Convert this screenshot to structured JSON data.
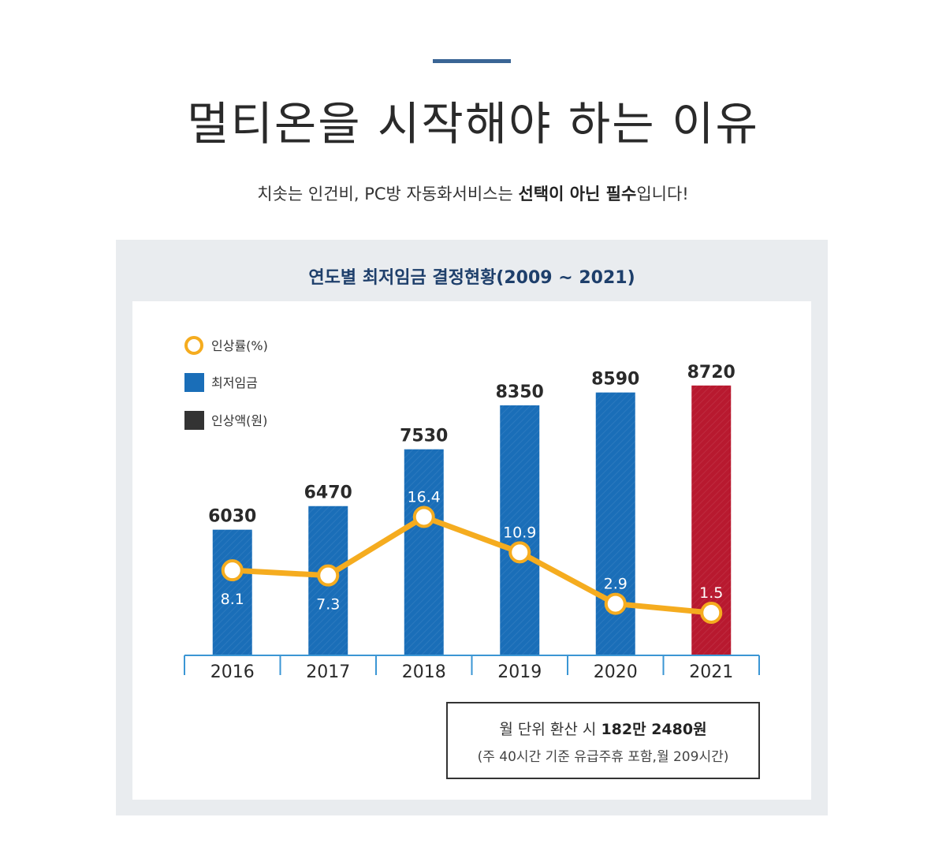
{
  "header": {
    "title": "멀티온을 시작해야 하는 이유",
    "subtitle_pre": "치솟는 인건비, PC방 자동화서비스는 ",
    "subtitle_bold": "선택이 아닌 필수",
    "subtitle_post": "입니다!"
  },
  "panel": {
    "title": "연도별 최저임금 결정현황(2009 ~ 2021)"
  },
  "note": {
    "line1_pre": "월 단위 환산 시 ",
    "line1_bold": "182만 2480원",
    "line2": "(주 40시간 기준 유급주휴 포함,월 209시간)"
  },
  "chart_data": {
    "type": "bar",
    "categories": [
      "2016",
      "2017",
      "2018",
      "2019",
      "2020",
      "2021"
    ],
    "series": [
      {
        "name": "최저임금",
        "kind": "bar",
        "values": [
          6030,
          6470,
          7530,
          8350,
          8590,
          8720
        ]
      },
      {
        "name": "인상률(%)",
        "kind": "line",
        "values": [
          8.1,
          7.3,
          16.4,
          10.9,
          2.9,
          1.5
        ]
      }
    ],
    "legend": [
      "인상률(%)",
      "최저임금",
      "인상액(원)"
    ],
    "legend_position": "top-left",
    "colors": {
      "bar": "#1a6eb8",
      "bar_highlight": "#b8192f",
      "line": "#f5ac1f",
      "legend_dark": "#333333",
      "axis": "#3b96d4"
    },
    "highlight_category": "2021",
    "bar_ylim": [
      3700,
      9100
    ],
    "line_ylim": [
      -5,
      40
    ]
  }
}
